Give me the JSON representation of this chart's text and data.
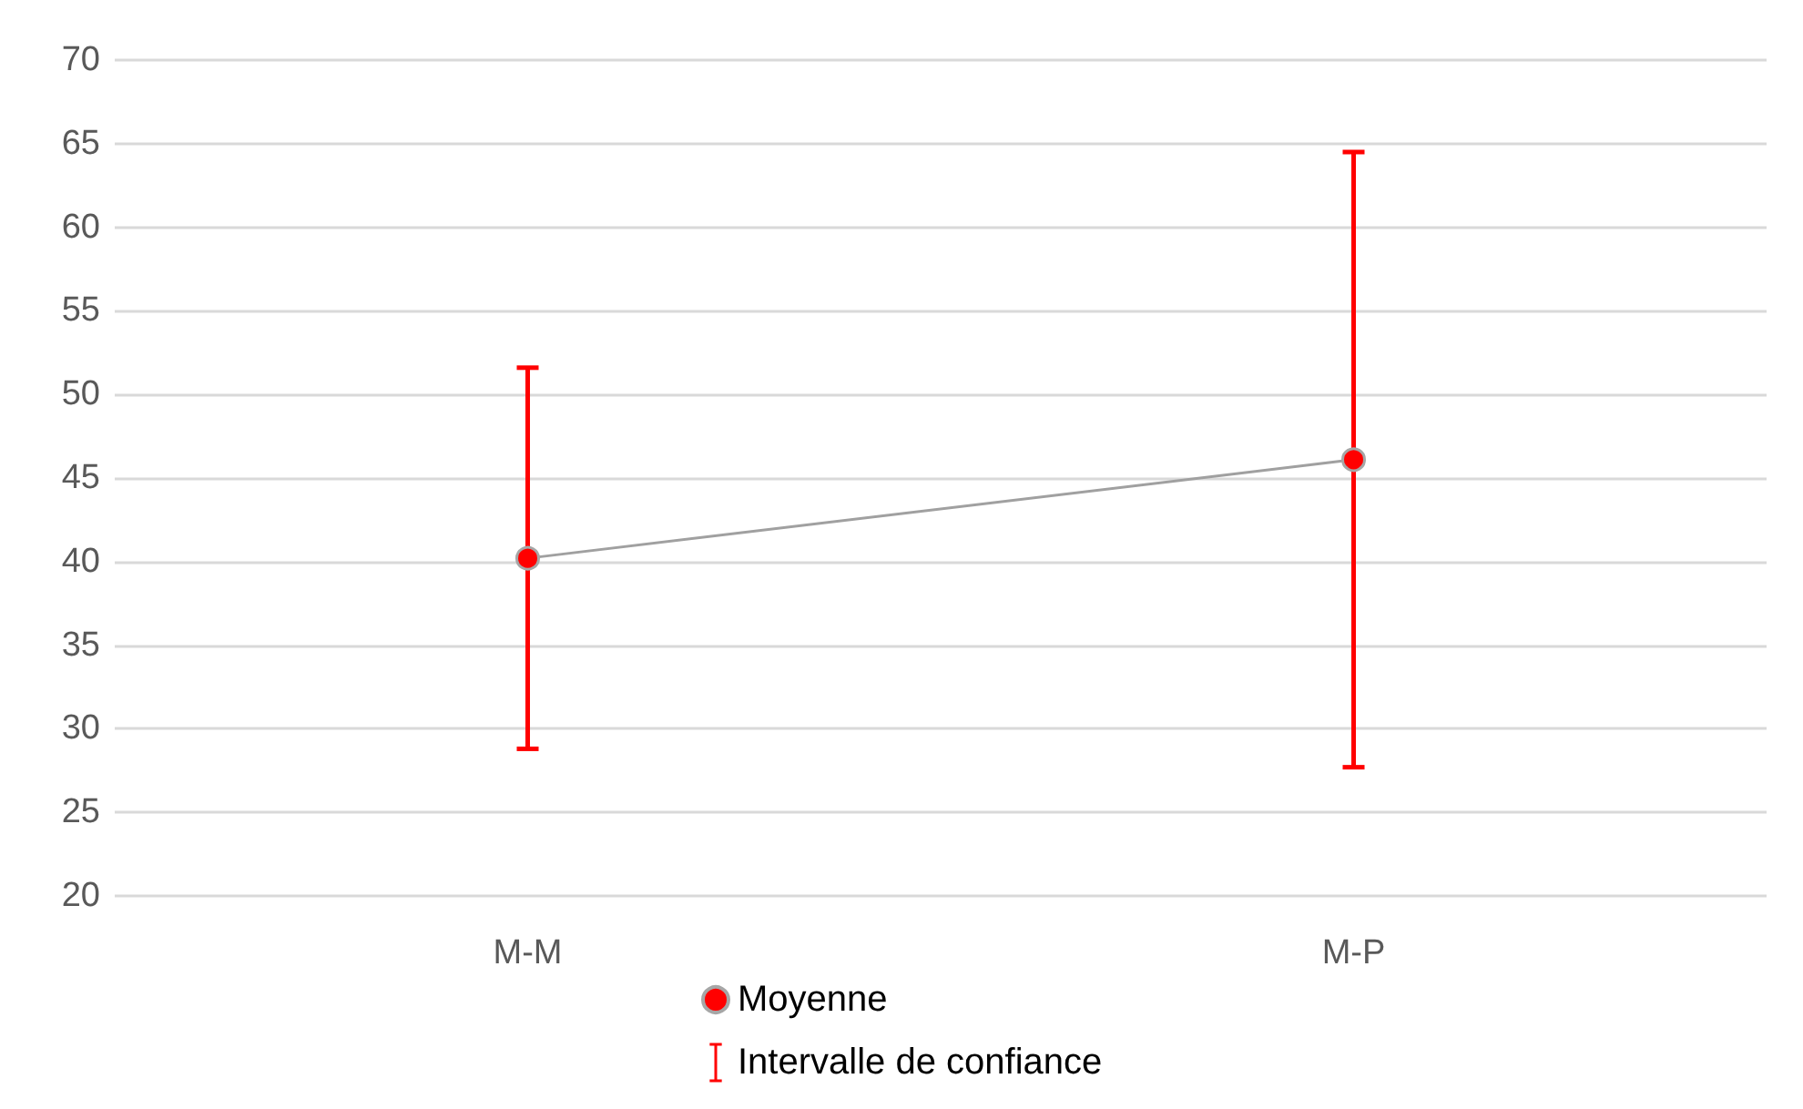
{
  "chart_data": {
    "type": "line",
    "categories": [
      "M-M",
      "M-P"
    ],
    "series": [
      {
        "name": "Moyenne",
        "color": "#ff0000",
        "values": [
          40.2,
          46.1
        ],
        "errors": [
          [
            28.8,
            51.6
          ],
          [
            27.7,
            64.5
          ]
        ]
      }
    ],
    "annotations": [
      "Intervalle de confiance"
    ],
    "ylim": [
      20,
      70
    ],
    "yticks": [
      20,
      25,
      30,
      35,
      40,
      45,
      50,
      55,
      60,
      65,
      70
    ],
    "grid": "y",
    "legend": "bottom",
    "marker": "circle"
  }
}
